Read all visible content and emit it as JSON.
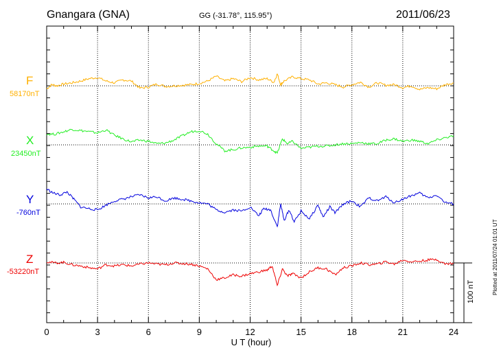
{
  "header": {
    "station": "Gnangara (GNA)",
    "coords": "GG (-31.78°, 115.95°)",
    "date": "2011/06/23"
  },
  "components": [
    {
      "name": "F",
      "baseline": "58170nT",
      "color": "#ffb000"
    },
    {
      "name": "X",
      "baseline": "23450nT",
      "color": "#22ee22"
    },
    {
      "name": "Y",
      "baseline": "-760nT",
      "color": "#0000dd"
    },
    {
      "name": "Z",
      "baseline": "-53220nT",
      "color": "#ee0000"
    }
  ],
  "scale_label": "100 nT",
  "plotted_note": "Plotted at 2011/07/24 01:01 UT",
  "chart_data": {
    "type": "line",
    "xlabel": "U T (hour)",
    "xlim": [
      0,
      24
    ],
    "xticks": [
      0,
      3,
      6,
      9,
      12,
      15,
      18,
      21,
      24
    ],
    "grid": true,
    "scale_bar_nT": 100,
    "series": [
      {
        "name": "F",
        "baseline_nT": 58170,
        "x": [
          0,
          0.3,
          0.6,
          1,
          1.5,
          2,
          2.5,
          3,
          3.5,
          4,
          4.5,
          5,
          5.5,
          6,
          6.5,
          7,
          7.5,
          8,
          8.5,
          9,
          9.5,
          10,
          10.5,
          11,
          11.5,
          12,
          12.5,
          13,
          13.4,
          13.6,
          13.8,
          14,
          14.5,
          15,
          15.5,
          16,
          16.5,
          17,
          17.5,
          18,
          18.5,
          19,
          19.5,
          20,
          20.5,
          21,
          21.5,
          22,
          22.5,
          23,
          23.5,
          24
        ],
        "y": [
          -5,
          2,
          0,
          3,
          5,
          8,
          12,
          14,
          8,
          5,
          10,
          8,
          -4,
          -2,
          3,
          -1,
          0,
          1,
          2,
          4,
          8,
          16,
          8,
          12,
          7,
          14,
          10,
          12,
          6,
          20,
          2,
          8,
          15,
          12,
          10,
          3,
          5,
          2,
          -2,
          2,
          6,
          -2,
          5,
          1,
          2,
          -3,
          0,
          -6,
          -3,
          -5,
          2,
          5
        ]
      },
      {
        "name": "X",
        "baseline_nT": 23450,
        "x": [
          0,
          0.5,
          1,
          1.5,
          2,
          2.5,
          3,
          3.5,
          4,
          4.5,
          5,
          5.5,
          6,
          6.5,
          7,
          7.5,
          8,
          8.5,
          9,
          9.5,
          10,
          10.5,
          11,
          11.5,
          12,
          12.5,
          13,
          13.3,
          13.6,
          13.9,
          14.2,
          14.5,
          15,
          15.5,
          16,
          16.5,
          17,
          17.5,
          18,
          18.5,
          19,
          19.5,
          20,
          20.5,
          21,
          21.5,
          22,
          22.5,
          23,
          23.5,
          24
        ],
        "y": [
          18,
          18,
          22,
          26,
          24,
          22,
          20,
          25,
          16,
          10,
          5,
          8,
          6,
          2,
          3,
          8,
          15,
          22,
          24,
          18,
          2,
          -10,
          -8,
          -5,
          -4,
          -2,
          -2,
          -8,
          -14,
          10,
          2,
          6,
          -6,
          -4,
          -2,
          -2,
          0,
          2,
          2,
          4,
          2,
          2,
          8,
          10,
          6,
          8,
          6,
          2,
          8,
          12,
          15
        ]
      },
      {
        "name": "Y",
        "baseline_nT": -760,
        "x": [
          0,
          0.4,
          0.8,
          1.2,
          1.6,
          2,
          2.5,
          3,
          3.5,
          4,
          4.5,
          5,
          5.5,
          6,
          6.5,
          7,
          7.5,
          8,
          8.5,
          9,
          9.5,
          10,
          10.5,
          11,
          11.5,
          12,
          12.5,
          12.8,
          13.2,
          13.6,
          13.8,
          14,
          14.3,
          14.6,
          15,
          15.5,
          16,
          16.3,
          16.7,
          17,
          17.5,
          18,
          18.5,
          19,
          19.5,
          20,
          20.5,
          21,
          21.5,
          22,
          22.5,
          23,
          23.5,
          24
        ],
        "y": [
          25,
          18,
          15,
          20,
          8,
          -5,
          -8,
          -10,
          -2,
          5,
          8,
          12,
          15,
          10,
          12,
          5,
          10,
          8,
          5,
          2,
          0,
          -10,
          -14,
          -10,
          -12,
          -5,
          -20,
          -8,
          -10,
          -38,
          0,
          -28,
          -10,
          -30,
          -12,
          -25,
          -2,
          -22,
          -5,
          -15,
          0,
          5,
          -5,
          10,
          5,
          12,
          2,
          8,
          14,
          18,
          10,
          15,
          2,
          0
        ]
      },
      {
        "name": "Z",
        "baseline_nT": -53220,
        "x": [
          0,
          0.5,
          1,
          1.5,
          2,
          2.5,
          3,
          3.5,
          4,
          4.5,
          5,
          5.5,
          6,
          6.5,
          7,
          7.5,
          8,
          8.5,
          9,
          9.5,
          10,
          10.5,
          11,
          11.5,
          12,
          12.5,
          13,
          13.3,
          13.6,
          13.9,
          14.2,
          14.5,
          15,
          15.5,
          16,
          16.5,
          17,
          17.5,
          18,
          18.5,
          19,
          19.5,
          20,
          20.5,
          21,
          21.5,
          22,
          22.5,
          23,
          23.5,
          24
        ],
        "y": [
          2,
          0,
          1,
          -3,
          -5,
          -8,
          -10,
          -3,
          -5,
          -3,
          -5,
          -2,
          0,
          -2,
          -3,
          0,
          -1,
          -2,
          -5,
          -10,
          -28,
          -25,
          -20,
          -22,
          -18,
          -15,
          -12,
          -5,
          -38,
          -10,
          -22,
          -18,
          -25,
          -15,
          -8,
          -10,
          -20,
          -8,
          -5,
          0,
          -3,
          -2,
          2,
          -2,
          5,
          2,
          3,
          5,
          6,
          -2,
          0
        ]
      }
    ]
  }
}
